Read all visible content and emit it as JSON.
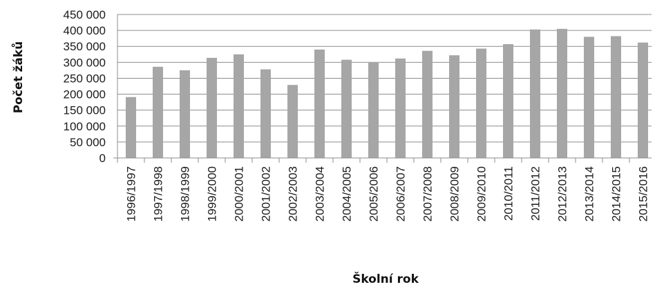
{
  "chart_data": {
    "type": "bar",
    "xlabel": "Školní rok",
    "ylabel": "Počet žáků",
    "ylim": [
      0,
      450000
    ],
    "yticks": [
      0,
      50000,
      100000,
      150000,
      200000,
      250000,
      300000,
      350000,
      400000,
      450000
    ],
    "ytick_labels": [
      "0",
      "50 000",
      "100 000",
      "150 000",
      "200 000",
      "250 000",
      "300 000",
      "350 000",
      "400 000",
      "450 000"
    ],
    "grid": true,
    "legend": "none",
    "bar_color": "#a6a6a6",
    "categories": [
      "1996/1997",
      "1997/1998",
      "1998/1999",
      "1999/2000",
      "2000/2001",
      "2001/2002",
      "2002/2003",
      "2003/2004",
      "2004/2005",
      "2005/2006",
      "2006/2007",
      "2007/2008",
      "2008/2009",
      "2009/2010",
      "2010/2011",
      "2011/2012",
      "2012/2013",
      "2013/2014",
      "2014/2015",
      "2015/2016"
    ],
    "values": [
      191000,
      286000,
      275000,
      314000,
      325000,
      278000,
      229000,
      340000,
      308000,
      301000,
      312000,
      336000,
      322000,
      343000,
      357000,
      403000,
      405000,
      380000,
      382000,
      362000
    ]
  }
}
